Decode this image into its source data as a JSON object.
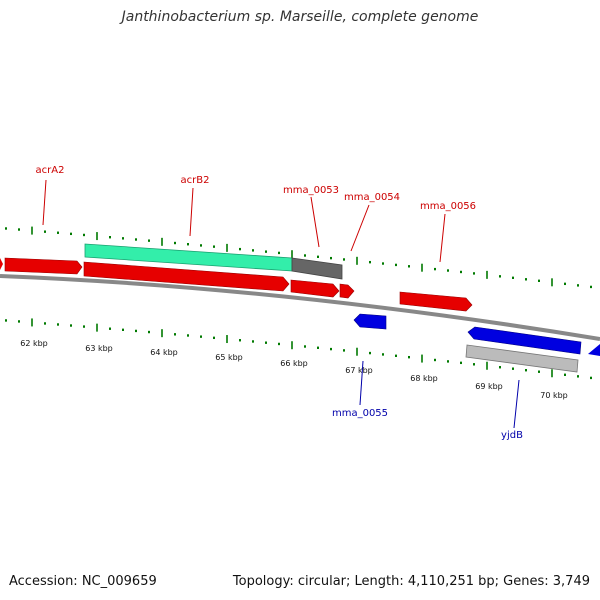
{
  "title": "Janthinobacterium sp. Marseille, complete genome",
  "footer": {
    "accession": "Accession: NC_009659",
    "summary": "Topology: circular; Length: 4,110,251 bp; Genes: 3,749"
  },
  "colors": {
    "plus_strand_gene": "#e60000",
    "minus_strand_gene": "#0000e0",
    "tick": "#007a00",
    "plus_label": "#cc0000",
    "minus_label": "#0000aa",
    "teal_feature": "#33eeaa",
    "grey_feature": "#666666"
  },
  "scale": {
    "tick_labels": [
      "62 kbp",
      "63 kbp",
      "64 kbp",
      "65 kbp",
      "66 kbp",
      "67 kbp",
      "68 kbp",
      "69 kbp",
      "70 kbp"
    ]
  },
  "labels": {
    "plus": [
      {
        "text": "acrA2"
      },
      {
        "text": "acrB2"
      },
      {
        "text": "mma_0053"
      },
      {
        "text": "mma_0054"
      },
      {
        "text": "mma_0056"
      }
    ],
    "minus": [
      {
        "text": "mma_0055"
      },
      {
        "text": "yjdB"
      }
    ]
  }
}
